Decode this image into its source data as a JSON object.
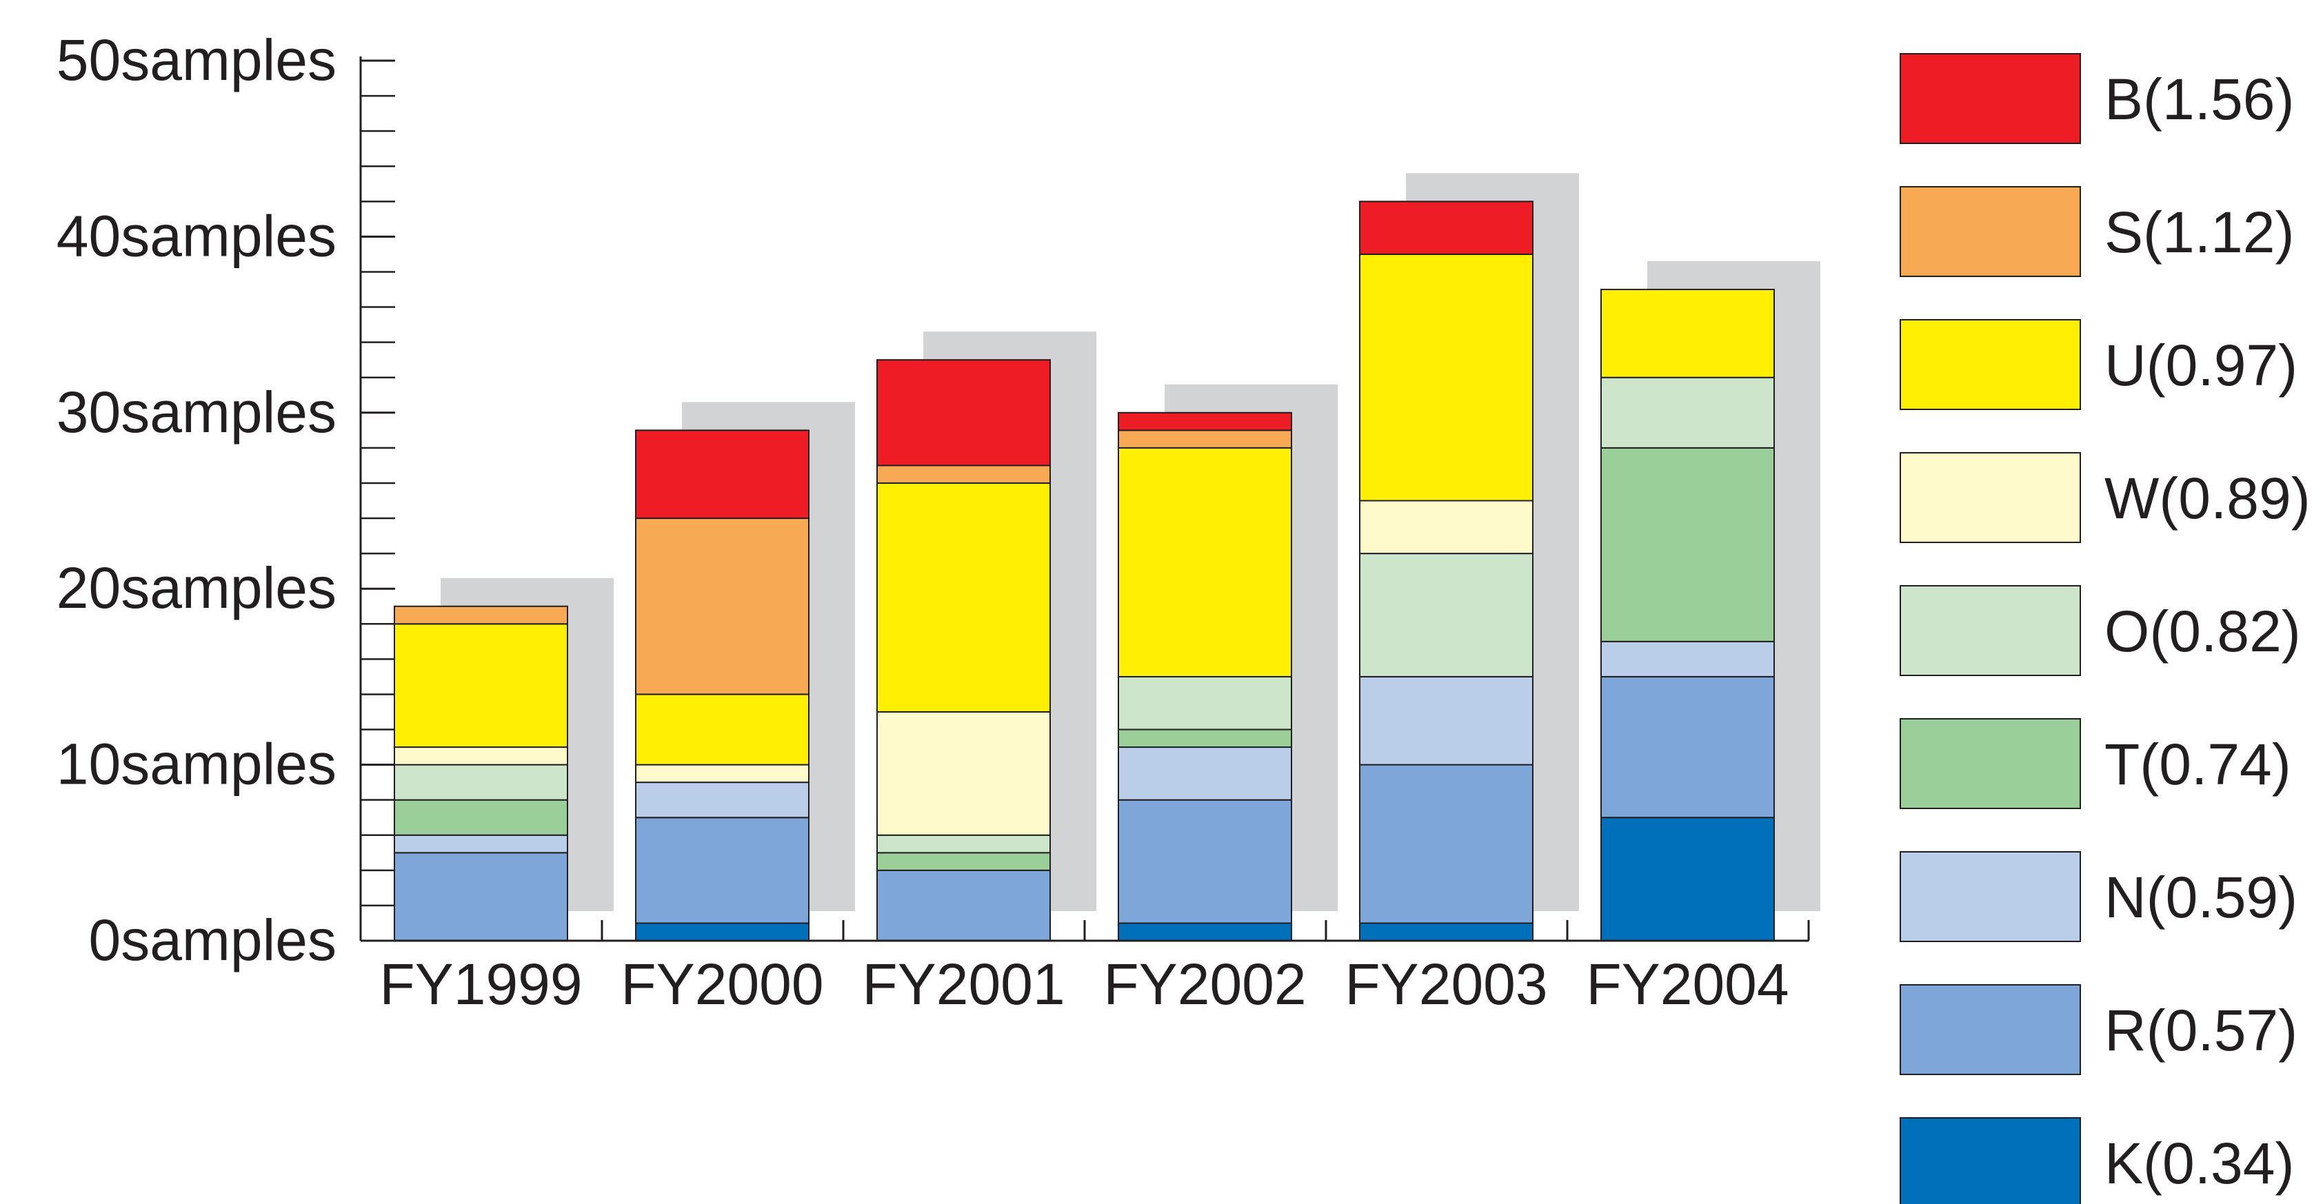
{
  "chart_data": {
    "type": "bar",
    "stacked": true,
    "categories": [
      "FY1999",
      "FY2000",
      "FY2001",
      "FY2002",
      "FY2003",
      "FY2004"
    ],
    "y_unit": "samples",
    "ylim": [
      0,
      50
    ],
    "y_major_ticks": [
      0,
      10,
      20,
      30,
      40,
      50
    ],
    "y_tick_labels": [
      "0samples",
      "10samples",
      "20samples",
      "30samples",
      "40samples",
      "50samples"
    ],
    "y_minor_tick_step": 2,
    "grid": false,
    "legend_position": "right",
    "shadow": true,
    "series": [
      {
        "name": "K(0.34)",
        "color": "#0070bb",
        "values": [
          0,
          1,
          0,
          1,
          1,
          7
        ]
      },
      {
        "name": "R(0.57)",
        "color": "#7ea6d8",
        "values": [
          5,
          6,
          4,
          7,
          9,
          8
        ]
      },
      {
        "name": "N(0.59)",
        "color": "#bacde9",
        "values": [
          1,
          2,
          0,
          3,
          5,
          2
        ]
      },
      {
        "name": "T(0.74)",
        "color": "#9bcf9a",
        "values": [
          2,
          0,
          1,
          1,
          0,
          11
        ]
      },
      {
        "name": "O(0.82)",
        "color": "#cde6cb",
        "values": [
          2,
          0,
          1,
          3,
          7,
          4
        ]
      },
      {
        "name": "W(0.89)",
        "color": "#fffacc",
        "values": [
          1,
          1,
          7,
          0,
          3,
          0
        ]
      },
      {
        "name": "U(0.97)",
        "color": "#ffef00",
        "values": [
          7,
          4,
          13,
          13,
          14,
          5
        ]
      },
      {
        "name": "S(1.12)",
        "color": "#f8a953",
        "values": [
          1,
          10,
          1,
          1,
          0,
          0
        ]
      },
      {
        "name": "B(1.56)",
        "color": "#ee1c24",
        "values": [
          0,
          5,
          6,
          1,
          3,
          0
        ]
      }
    ],
    "legend_order": [
      "B(1.56)",
      "S(1.12)",
      "U(0.97)",
      "W(0.89)",
      "O(0.82)",
      "T(0.74)",
      "N(0.59)",
      "R(0.57)",
      "K(0.34)"
    ]
  },
  "colors": {
    "shadow": "#d1d3d4",
    "axis": "#231f20",
    "bar_outline": "#231f20"
  }
}
